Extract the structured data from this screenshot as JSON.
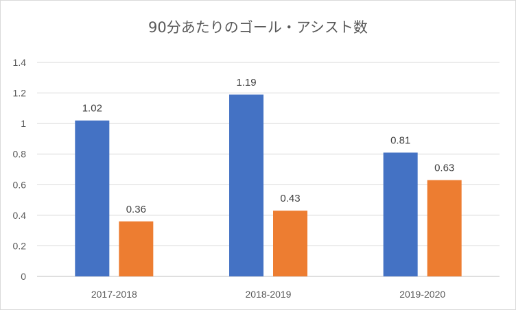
{
  "chart_data": {
    "type": "bar",
    "title": "90分あたりのゴール・アシスト数",
    "categories": [
      "2017-2018",
      "2018-2019",
      "2019-2020"
    ],
    "series": [
      {
        "color": "#4472c4",
        "values": [
          1.02,
          1.19,
          0.81
        ]
      },
      {
        "color": "#ed7d31",
        "values": [
          0.36,
          0.43,
          0.63
        ]
      }
    ],
    "ylim": [
      0,
      1.4
    ],
    "yticks": [
      "0",
      "0.2",
      "0.4",
      "0.6",
      "0.8",
      "1",
      "1.2",
      "1.4"
    ],
    "data_labels": [
      [
        "1.02",
        "1.19",
        "0.81"
      ],
      [
        "0.36",
        "0.43",
        "0.63"
      ]
    ],
    "grid": true,
    "legend": "none"
  }
}
